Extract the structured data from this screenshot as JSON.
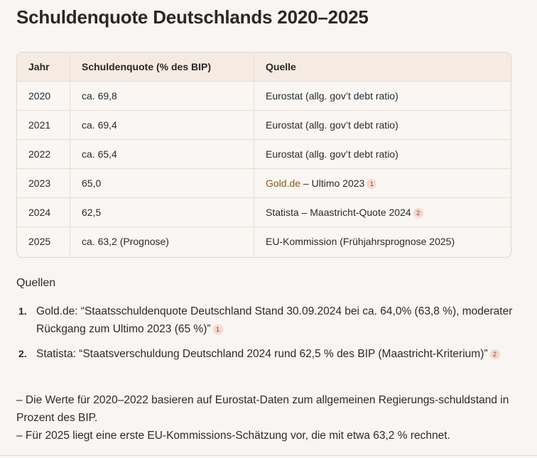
{
  "title": "Schuldenquote Deutschlands 2020–2025",
  "table": {
    "headers": [
      "Jahr",
      "Schuldenquote (% des BIP)",
      "Quelle"
    ],
    "rows": [
      {
        "year": "2020",
        "quota": "ca. 69,8",
        "source_link": "",
        "source_text": "Eurostat (allg. gov’t debt ratio)",
        "ref": ""
      },
      {
        "year": "2021",
        "quota": "ca. 69,4",
        "source_link": "",
        "source_text": "Eurostat (allg. gov’t debt ratio)",
        "ref": ""
      },
      {
        "year": "2022",
        "quota": "ca. 65,4",
        "source_link": "",
        "source_text": "Eurostat (allg. gov’t debt ratio)",
        "ref": ""
      },
      {
        "year": "2023",
        "quota": "65,0",
        "source_link": "Gold.de",
        "source_text": " – Ultimo 2023",
        "ref": "1"
      },
      {
        "year": "2024",
        "quota": "62,5",
        "source_link": "",
        "source_text": "Statista – Maastricht-Quote 2024",
        "ref": "2"
      },
      {
        "year": "2025",
        "quota": "ca. 63,2 (Prognose)",
        "source_link": "",
        "source_text": "EU-Kommission (Frühjahrsprognose 2025)",
        "ref": ""
      }
    ]
  },
  "sources": {
    "title": "Quellen",
    "items": [
      {
        "num": "1.",
        "text": "Gold.de: “Staatsschuldenquote Deutschland Stand 30.09.2024 bei ca. 64,0% (63,8 %), moderater Rückgang zum Ultimo 2023 (65 %)”",
        "ref": "1"
      },
      {
        "num": "2.",
        "text": "Statista: “Staatsverschuldung Deutschland 2024 rund 62,5 % des BIP (Maastricht-Kriterium)”",
        "ref": "2"
      }
    ]
  },
  "notes": [
    "– Die Werte für 2020–2022 basieren auf Eurostat-Daten zum allgemeinen Regierungs-schuldstand in Prozent des BIP.",
    "– Für 2025 liegt eine erste EU-Kommissions-Schätzung vor, die mit etwa 63,2 % rechnet."
  ]
}
